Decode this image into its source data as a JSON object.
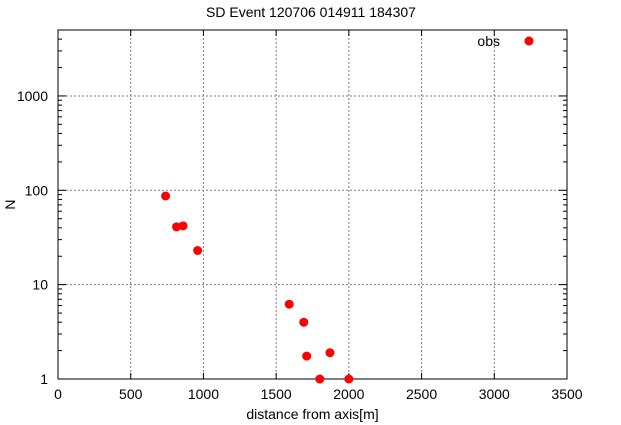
{
  "chart_data": {
    "type": "scatter",
    "title": "SD Event 120706 014911 184307",
    "xlabel": "distance from axis[m]",
    "ylabel": "N",
    "xlim": [
      0,
      3500
    ],
    "ylim": [
      1,
      5000
    ],
    "yscale": "log",
    "xticks": [
      0,
      500,
      1000,
      1500,
      2000,
      2500,
      3000,
      3500
    ],
    "yticks": [
      1,
      10,
      100,
      1000
    ],
    "xtick_labels": [
      "0",
      "500",
      "1000",
      "1500",
      "2000",
      "2500",
      "3000",
      "3500"
    ],
    "ytick_labels": [
      "1",
      "10",
      "100",
      "1000"
    ],
    "grid": true,
    "legend_position": "top-right",
    "series": [
      {
        "name": "obs",
        "color": "#ff0000",
        "x": [
          740,
          815,
          860,
          960,
          1590,
          1690,
          1710,
          1800,
          1870,
          2000
        ],
        "y": [
          87,
          41,
          42,
          23,
          6.2,
          4.0,
          1.75,
          1.0,
          1.9,
          1.0
        ]
      }
    ]
  }
}
